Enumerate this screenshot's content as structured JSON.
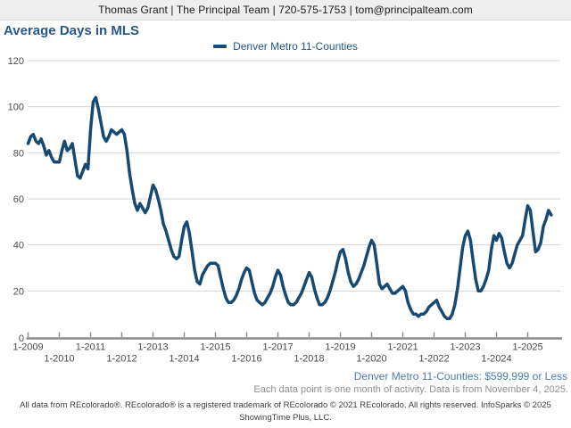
{
  "header": {
    "contact_line": "Thomas Grant | The Principal Team | 720-575-1753 | tom@principalteam.com"
  },
  "title": "Average Days in MLS",
  "legend": {
    "label": "Denver Metro 11-Counties",
    "swatch_color": "#174a72"
  },
  "annotations": {
    "filter_line": "Denver Metro 11-Counties: $599,999 or Less",
    "data_note": "Each data point is one month of activity. Data is from November 4, 2025.",
    "copyright_line1": "All data from REcolorado®. REcolorado® is a registered trademark of REcolorado © 2021 REcolorado. All rights reserved. InfoSparks © 2025",
    "copyright_line2": "ShowingTime Plus, LLC."
  },
  "colors": {
    "line": "#174a72",
    "title_blue": "#28578a",
    "annotation_blue": "#4e7ca8",
    "gridline": "#d4d4d4",
    "axis": "#8a8a8a",
    "tick_label": "#4a4a4a",
    "header_bg": "#efefef"
  },
  "chart_data": {
    "type": "line",
    "title": "Average Days in MLS",
    "xlabel": "",
    "ylabel": "",
    "ylim": [
      0,
      120
    ],
    "y_ticks": [
      0,
      20,
      40,
      60,
      80,
      100,
      120
    ],
    "grid": "horizontal",
    "legend_position": "top-center",
    "x_tick_labels": [
      "1-2009",
      "1-2010",
      "1-2011",
      "1-2012",
      "1-2013",
      "1-2014",
      "1-2015",
      "1-2016",
      "1-2017",
      "1-2018",
      "1-2019",
      "1-2020",
      "1-2021",
      "1-2022",
      "1-2023",
      "1-2024",
      "1-2025"
    ],
    "series": [
      {
        "name": "Denver Metro 11-Counties",
        "color": "#174a72",
        "frequency": "monthly",
        "start_month": "2009-01",
        "end_month": "2025-10",
        "values": [
          84,
          87,
          88,
          85,
          84,
          86,
          83,
          79,
          81,
          78,
          76,
          76,
          76,
          81,
          85,
          81,
          82,
          84,
          77,
          70,
          69,
          72,
          75,
          73,
          90,
          102,
          104,
          99,
          93,
          87,
          85,
          87,
          90,
          89,
          88,
          89,
          90,
          88,
          81,
          71,
          64,
          58,
          55,
          58,
          56,
          54,
          56,
          61,
          66,
          64,
          60,
          55,
          49,
          46,
          42,
          38,
          35,
          34,
          35,
          42,
          48,
          50,
          45,
          37,
          29,
          24,
          23,
          27,
          29,
          31,
          32,
          32,
          32,
          31,
          26,
          21,
          17,
          15,
          15,
          16,
          18,
          21,
          25,
          28,
          30,
          29,
          24,
          19,
          16,
          15,
          14,
          15,
          17,
          19,
          22,
          26,
          29,
          27,
          22,
          18,
          15,
          14,
          14,
          15,
          17,
          19,
          22,
          25,
          28,
          26,
          21,
          17,
          14,
          14,
          15,
          17,
          20,
          24,
          28,
          33,
          37,
          38,
          34,
          28,
          24,
          22,
          23,
          25,
          28,
          31,
          35,
          39,
          42,
          40,
          32,
          23,
          21,
          22,
          23,
          21,
          19,
          19,
          20,
          21,
          22,
          20,
          15,
          12,
          10,
          10,
          9,
          10,
          10,
          11,
          13,
          14,
          15,
          16,
          13,
          11,
          9,
          8,
          8,
          10,
          14,
          21,
          30,
          39,
          44,
          46,
          42,
          33,
          25,
          20,
          20,
          22,
          25,
          29,
          38,
          44,
          42,
          45,
          43,
          37,
          32,
          30,
          32,
          36,
          40,
          42,
          44,
          51,
          57,
          55,
          46,
          37,
          38,
          41,
          48,
          51,
          55,
          53
        ]
      }
    ]
  }
}
